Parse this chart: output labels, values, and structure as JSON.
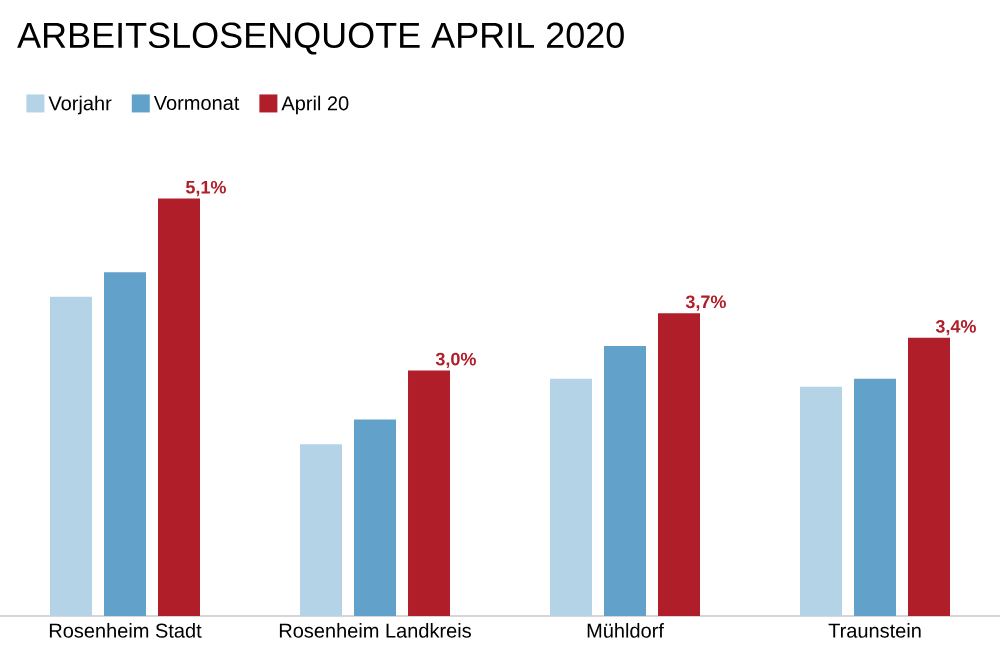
{
  "chart_data": {
    "type": "bar",
    "title": "ARBEITSLOSENQUOTE APRIL 2020",
    "categories": [
      "Rosenheim Stadt",
      "Rosenheim Landkreis",
      "Mühldorf",
      "Traunstein"
    ],
    "series": [
      {
        "name": "Vorjahr",
        "color": "#b4d3e6",
        "values": [
          3.9,
          2.1,
          2.9,
          2.8
        ]
      },
      {
        "name": "Vormonat",
        "color": "#62a1c9",
        "values": [
          4.2,
          2.4,
          3.3,
          2.9
        ]
      },
      {
        "name": "April 20",
        "color": "#b01e2a",
        "values": [
          5.1,
          3.0,
          3.7,
          3.4
        ],
        "value_labels": [
          "5,1%",
          "3,0%",
          "3,7%",
          "3,4%"
        ]
      }
    ],
    "legend": "top left"
  }
}
